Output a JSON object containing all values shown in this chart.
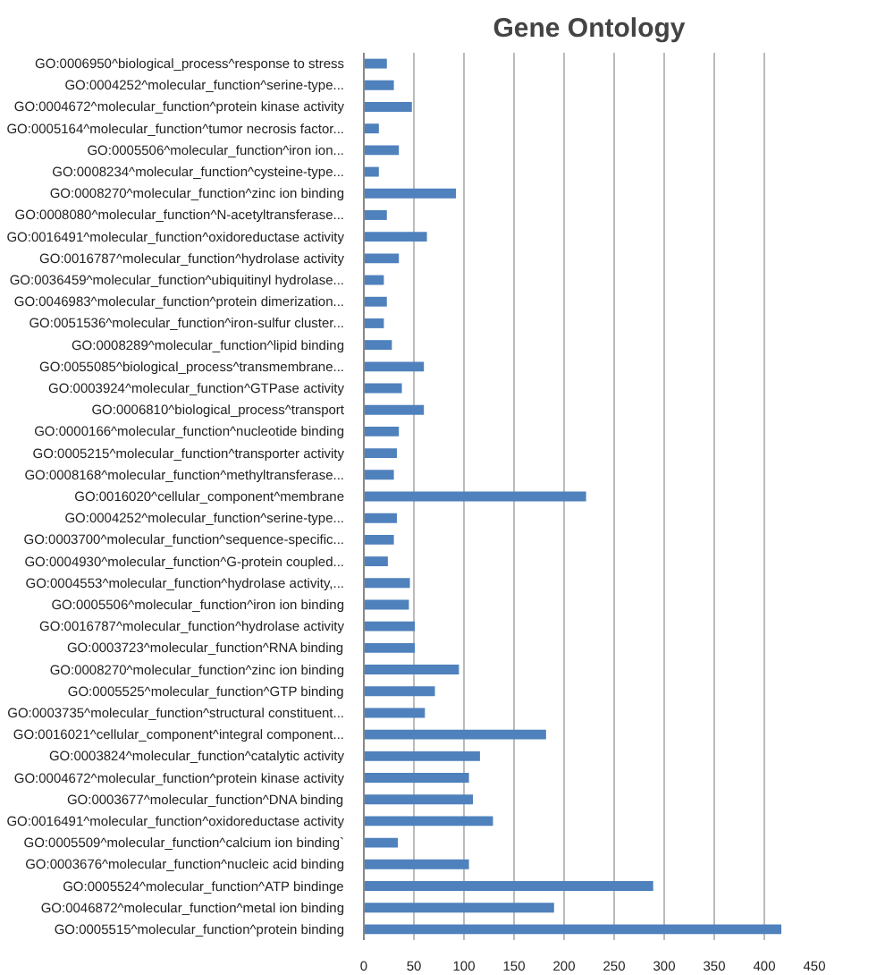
{
  "chart_data": {
    "type": "bar",
    "orientation": "horizontal",
    "title": "Gene Ontology",
    "categories": [
      "GO:0006950^biological_process^response to stress",
      "GO:0004252^molecular_function^serine-type...",
      "GO:0004672^molecular_function^protein kinase activity",
      "GO:0005164^molecular_function^tumor necrosis factor...",
      "GO:0005506^molecular_function^iron ion...",
      "GO:0008234^molecular_function^cysteine-type...",
      "GO:0008270^molecular_function^zinc ion binding",
      "GO:0008080^molecular_function^N-acetyltransferase...",
      "GO:0016491^molecular_function^oxidoreductase activity",
      "GO:0016787^molecular_function^hydrolase activity",
      "GO:0036459^molecular_function^ubiquitinyl hydrolase...",
      "GO:0046983^molecular_function^protein dimerization...",
      "GO:0051536^molecular_function^iron-sulfur cluster...",
      "GO:0008289^molecular_function^lipid binding",
      "GO:0055085^biological_process^transmembrane...",
      "GO:0003924^molecular_function^GTPase activity",
      "GO:0006810^biological_process^transport",
      "GO:0000166^molecular_function^nucleotide binding",
      "GO:0005215^molecular_function^transporter activity",
      "GO:0008168^molecular_function^methyltransferase...",
      "GO:0016020^cellular_component^membrane",
      "GO:0004252^molecular_function^serine-type...",
      "GO:0003700^molecular_function^sequence-specific...",
      "GO:0004930^molecular_function^G-protein coupled...",
      "GO:0004553^molecular_function^hydrolase activity,...",
      "GO:0005506^molecular_function^iron ion binding",
      "GO:0016787^molecular_function^hydrolase activity",
      "GO:0003723^molecular_function^RNA binding",
      "GO:0008270^molecular_function^zinc ion binding",
      "GO:0005525^molecular_function^GTP binding",
      "GO:0003735^molecular_function^structural constituent...",
      "GO:0016021^cellular_component^integral component...",
      "GO:0003824^molecular_function^catalytic activity",
      "GO:0004672^molecular_function^protein kinase activity",
      "GO:0003677^molecular_function^DNA binding",
      "GO:0016491^molecular_function^oxidoreductase activity",
      "GO:0005509^molecular_function^calcium ion binding`",
      "GO:0003676^molecular_function^nucleic acid binding",
      "GO:0005524^molecular_function^ATP bindinge",
      "GO:0046872^molecular_function^metal ion binding",
      "GO:0005515^molecular_function^protein binding"
    ],
    "values": [
      23,
      30,
      48,
      15,
      35,
      15,
      92,
      23,
      63,
      35,
      20,
      23,
      20,
      28,
      60,
      38,
      60,
      35,
      33,
      30,
      222,
      33,
      30,
      24,
      46,
      45,
      51,
      51,
      95,
      71,
      61,
      182,
      116,
      105,
      109,
      129,
      34,
      105,
      289,
      190,
      417
    ],
    "color": "#4f81bd",
    "xlim": [
      0,
      450
    ],
    "xticks": [
      0,
      50,
      100,
      150,
      200,
      250,
      300,
      350,
      400,
      450
    ],
    "grid": "x"
  }
}
